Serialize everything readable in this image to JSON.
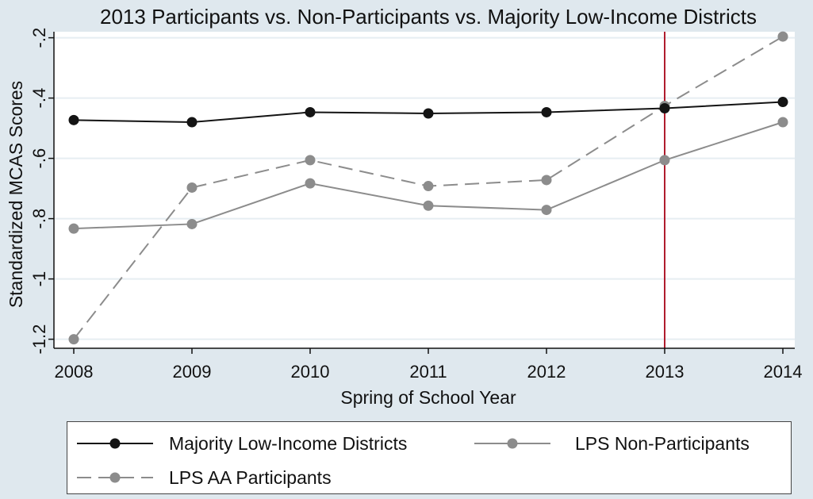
{
  "chart_data": {
    "type": "line",
    "title": "2013 Participants vs. Non-Participants vs. Majority Low-Income Districts",
    "xlabel": "Spring of School Year",
    "ylabel": "Standardized MCAS Scores",
    "x": [
      2008,
      2009,
      2010,
      2011,
      2012,
      2013,
      2014
    ],
    "x_tick_labels": [
      "2008",
      "2009",
      "2010",
      "2011",
      "2012",
      "2013",
      "2014"
    ],
    "xlim": [
      2008,
      2014
    ],
    "ylim": [
      -1.23,
      -0.18
    ],
    "y_ticks": [
      -1.2,
      -1,
      -0.8,
      -0.6,
      -0.4,
      -0.2
    ],
    "y_tick_labels": [
      "-1.2",
      "-1",
      "-.8",
      "-.6",
      "-.4",
      "-.2"
    ],
    "grid": true,
    "reference_line": {
      "x": 2013,
      "color": "#b01c2e"
    },
    "series": [
      {
        "name": "Majority Low-Income Districts",
        "values": [
          -0.473,
          -0.48,
          -0.447,
          -0.451,
          -0.447,
          -0.434,
          -0.413
        ],
        "color": "#141414",
        "dash": false
      },
      {
        "name": "LPS Non-Participants",
        "values": [
          -0.833,
          -0.818,
          -0.683,
          -0.757,
          -0.771,
          -0.606,
          -0.48
        ],
        "color": "#8c8c8c",
        "dash": false
      },
      {
        "name": "LPS AA Participants",
        "values": [
          -1.2,
          -0.697,
          -0.606,
          -0.692,
          -0.672,
          -0.426,
          -0.196
        ],
        "color": "#8c8c8c",
        "dash": true
      }
    ],
    "legend_position": "bottom"
  }
}
